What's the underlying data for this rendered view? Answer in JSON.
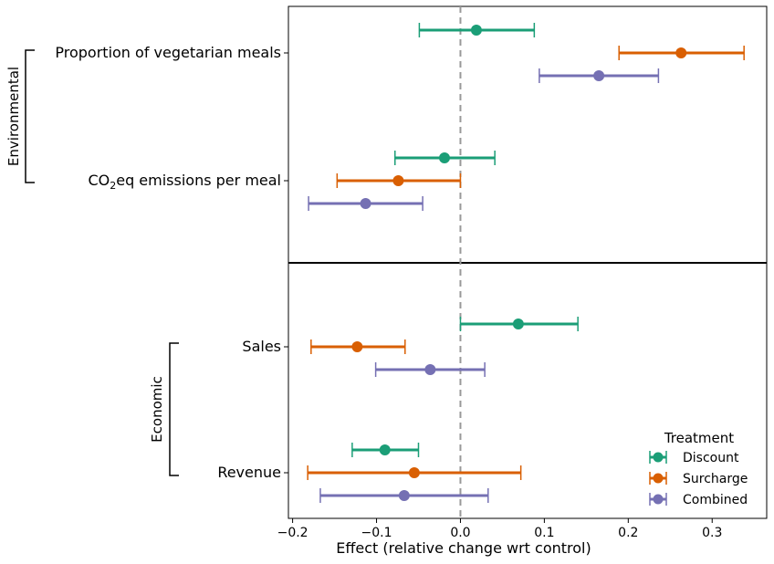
{
  "chart_data": {
    "type": "scatter",
    "xlabel": "Effect (relative change wrt control)",
    "xlim": [
      -0.205,
      0.365
    ],
    "xticks": [
      -0.2,
      -0.1,
      0.0,
      0.1,
      0.2,
      0.3
    ],
    "xtick_labels": [
      "−0.2",
      "−0.1",
      "0.0",
      "0.1",
      "0.2",
      "0.3"
    ],
    "reference_line": 0.0,
    "legend": {
      "title": "Treatment",
      "placement": "lower-right"
    },
    "series": [
      {
        "name": "Discount",
        "color": "#1b9e77"
      },
      {
        "name": "Surcharge",
        "color": "#d95f02"
      },
      {
        "name": "Combined",
        "color": "#7570b3"
      }
    ],
    "groups": [
      {
        "label": "Environmental",
        "outcomes": [
          {
            "label": "Proportion of vegetarian meals",
            "label_html": false,
            "estimates": [
              {
                "series": "Discount",
                "value": 0.019,
                "low": -0.049,
                "high": 0.088
              },
              {
                "series": "Surcharge",
                "value": 0.263,
                "low": 0.189,
                "high": 0.338
              },
              {
                "series": "Combined",
                "value": 0.165,
                "low": 0.094,
                "high": 0.236
              }
            ]
          },
          {
            "label": "CO2eq emissions per meal",
            "label_parts": [
              "CO",
              "2",
              "eq emissions per meal"
            ],
            "estimates": [
              {
                "series": "Discount",
                "value": -0.019,
                "low": -0.078,
                "high": 0.041
              },
              {
                "series": "Surcharge",
                "value": -0.074,
                "low": -0.147,
                "high": 0.0
              },
              {
                "series": "Combined",
                "value": -0.113,
                "low": -0.181,
                "high": -0.045
              }
            ]
          }
        ]
      },
      {
        "label": "Economic",
        "outcomes": [
          {
            "label": "Sales",
            "estimates": [
              {
                "series": "Discount",
                "value": 0.069,
                "low": 0.0,
                "high": 0.14
              },
              {
                "series": "Surcharge",
                "value": -0.123,
                "low": -0.178,
                "high": -0.066
              },
              {
                "series": "Combined",
                "value": -0.036,
                "low": -0.101,
                "high": 0.029
              }
            ]
          },
          {
            "label": "Revenue",
            "estimates": [
              {
                "series": "Discount",
                "value": -0.09,
                "low": -0.129,
                "high": -0.05
              },
              {
                "series": "Surcharge",
                "value": -0.055,
                "low": -0.182,
                "high": 0.072
              },
              {
                "series": "Combined",
                "value": -0.067,
                "low": -0.167,
                "high": 0.033
              }
            ]
          }
        ]
      }
    ]
  }
}
